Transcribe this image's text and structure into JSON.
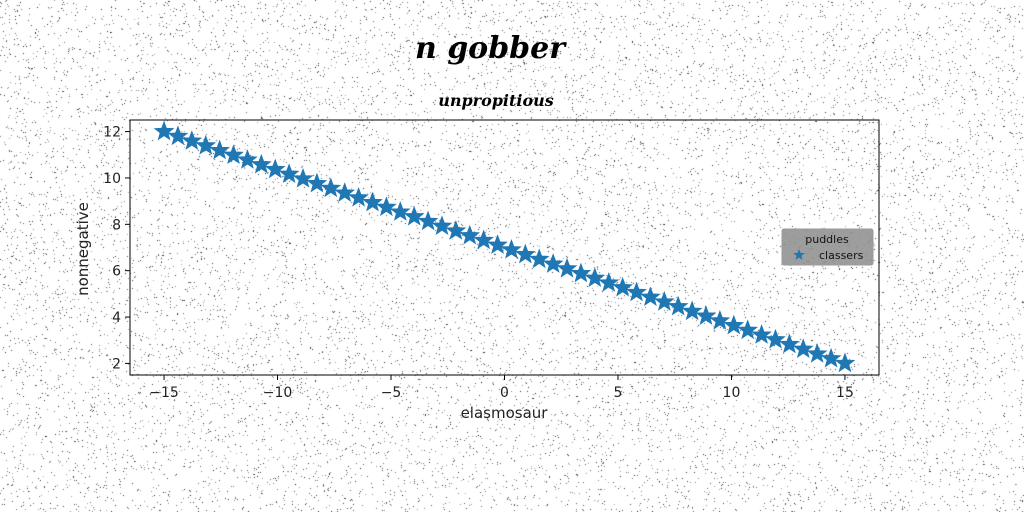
{
  "chart_data": {
    "type": "line",
    "suptitle": "n gobber",
    "title": "unpropitious",
    "xlabel": "elasmosaur",
    "ylabel": "nonnegative",
    "xlim": [
      -16.5,
      16.5
    ],
    "ylim": [
      1.5,
      12.5
    ],
    "xticks": [
      -15,
      -10,
      -5,
      0,
      5,
      10,
      15
    ],
    "xtick_labels": [
      "−15",
      "−10",
      "−5",
      "0",
      "5",
      "10",
      "15"
    ],
    "yticks": [
      2,
      4,
      6,
      8,
      10,
      12
    ],
    "ytick_labels": [
      "2",
      "4",
      "6",
      "8",
      "10",
      "12"
    ],
    "grid": false,
    "legend": {
      "title": "puddles",
      "placement": "center-right"
    },
    "series": [
      {
        "name": "classers",
        "marker": "star",
        "color": "#1f77b4",
        "x_start": -15,
        "x_end": 15,
        "n_points": 50,
        "y_start": 12,
        "y_end": 2
      }
    ]
  }
}
